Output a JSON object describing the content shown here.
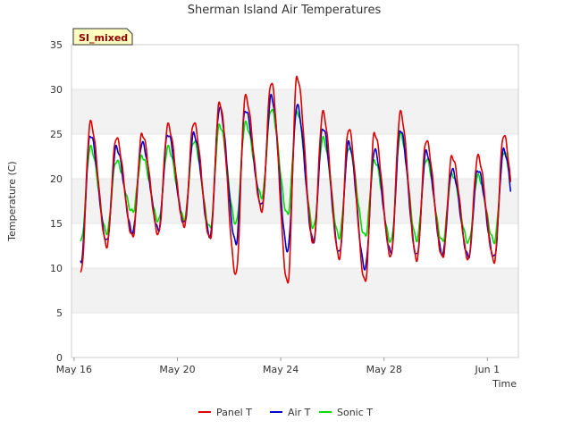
{
  "chart_data": {
    "type": "line",
    "title": "Sherman Island Air Temperatures",
    "xlabel": "Time",
    "ylabel": "Temperature (C)",
    "site_tag": "SI_mixed",
    "x_unit": "day-of-record (May 16 = 0)",
    "xlim": [
      -0.1,
      17.2
    ],
    "ylim": [
      0,
      35
    ],
    "yticks": [
      0,
      5,
      10,
      15,
      20,
      25,
      30,
      35
    ],
    "xticks": [
      {
        "value": 0,
        "label": "May 16"
      },
      {
        "value": 4,
        "label": "May 20"
      },
      {
        "value": 8,
        "label": "May 24"
      },
      {
        "value": 12,
        "label": "May 28"
      },
      {
        "value": 16,
        "label": "Jun 1"
      }
    ],
    "grid": "alternating horizontal bands",
    "legend_position": "bottom",
    "series": [
      {
        "name": "Panel T",
        "color": "#dd0000",
        "daily_min": [
          9.5,
          12.5,
          13.5,
          13.8,
          14.8,
          13.3,
          9.3,
          16.5,
          8.3,
          12.8,
          11.2,
          8.5,
          11.3,
          11.0,
          11.2,
          11.0,
          10.8,
          10.5
        ],
        "daily_max": [
          26.3,
          24.6,
          25.0,
          26.0,
          26.3,
          28.5,
          29.2,
          30.8,
          31.4,
          27.4,
          25.6,
          25.1,
          27.4,
          24.3,
          22.5,
          22.5,
          24.9
        ]
      },
      {
        "name": "Air T",
        "color": "#0000cc",
        "daily_min": [
          10.8,
          13.0,
          14.0,
          14.3,
          15.0,
          13.6,
          12.8,
          17.0,
          12.0,
          13.0,
          11.7,
          10.0,
          11.8,
          11.4,
          11.6,
          11.3,
          11.2,
          11.5
        ],
        "daily_max": [
          24.9,
          23.5,
          24.0,
          25.0,
          25.0,
          27.9,
          27.7,
          29.2,
          28.2,
          25.7,
          24.0,
          23.2,
          25.5,
          23.0,
          21.0,
          21.0,
          23.2
        ]
      },
      {
        "name": "Sonic T",
        "color": "#00dd00",
        "daily_min": [
          13.0,
          14.0,
          16.3,
          15.3,
          15.5,
          14.5,
          15.0,
          18.0,
          16.0,
          14.5,
          13.5,
          13.6,
          13.0,
          13.2,
          13.0,
          12.9,
          13.0,
          13.5
        ],
        "daily_max": [
          23.5,
          22.0,
          22.5,
          23.5,
          24.2,
          26.0,
          26.2,
          27.8,
          27.5,
          24.5,
          23.5,
          22.0,
          25.0,
          22.2,
          20.5,
          20.3,
          23.0
        ]
      }
    ]
  }
}
